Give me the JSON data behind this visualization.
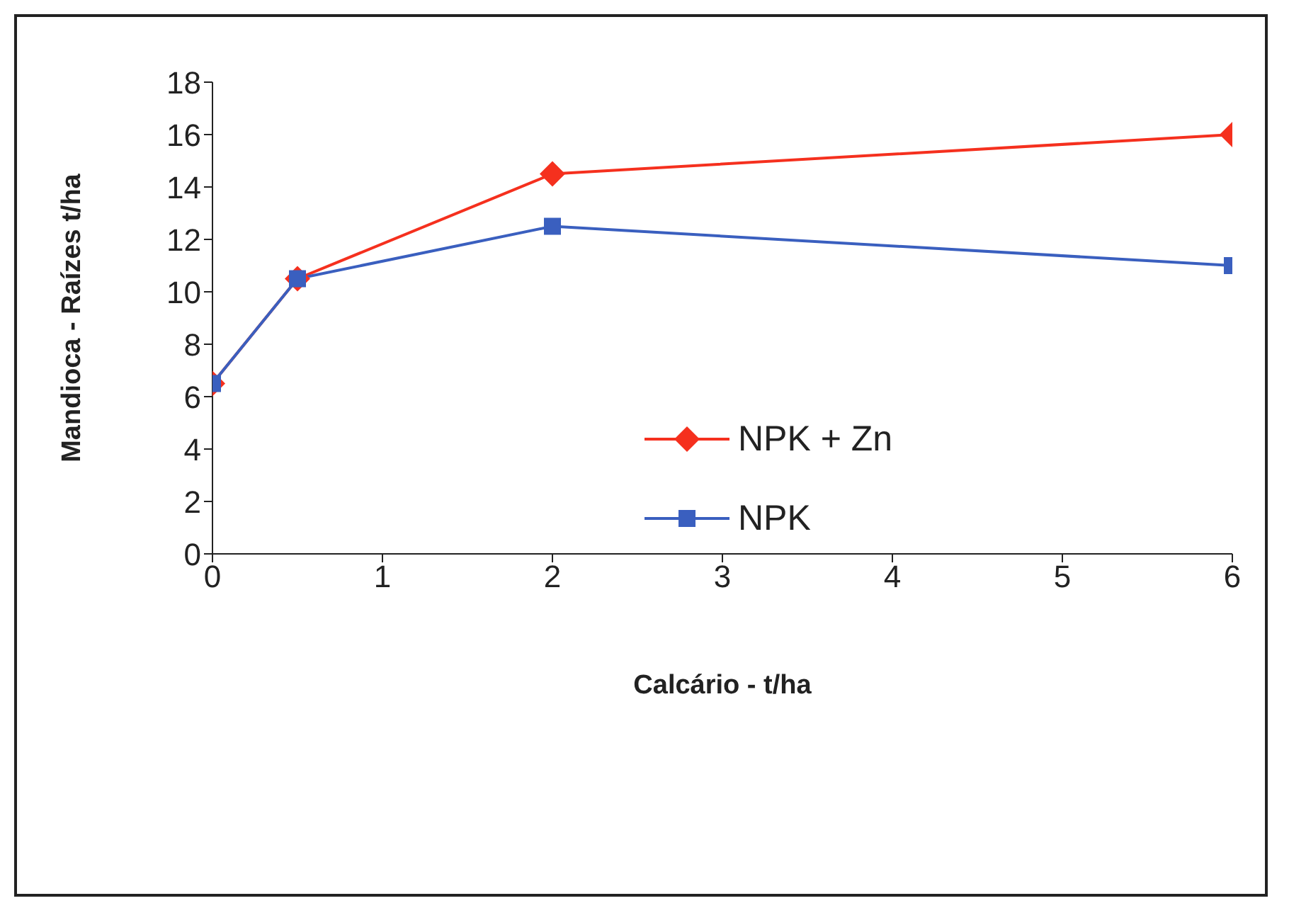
{
  "chart_data": {
    "type": "line",
    "xlabel": "Calcário - t/ha",
    "ylabel": "Mandioca - Raízes t/ha",
    "x": [
      0,
      0.5,
      2,
      6
    ],
    "series": [
      {
        "name": "NPK + Zn",
        "color": "#f5301e",
        "values": [
          6.5,
          10.5,
          14.5,
          16
        ],
        "marker": "diamond"
      },
      {
        "name": "NPK",
        "color": "#3a5fbf",
        "values": [
          6.5,
          10.5,
          12.5,
          11
        ],
        "marker": "square"
      }
    ],
    "xlim": [
      0,
      6
    ],
    "xticks": [
      0,
      1,
      2,
      3,
      4,
      5,
      6
    ],
    "ylim": [
      0,
      18
    ],
    "yticks": [
      0,
      2,
      4,
      6,
      8,
      10,
      12,
      14,
      16,
      18
    ],
    "grid": false,
    "legend": "right",
    "line_style": "solid"
  }
}
